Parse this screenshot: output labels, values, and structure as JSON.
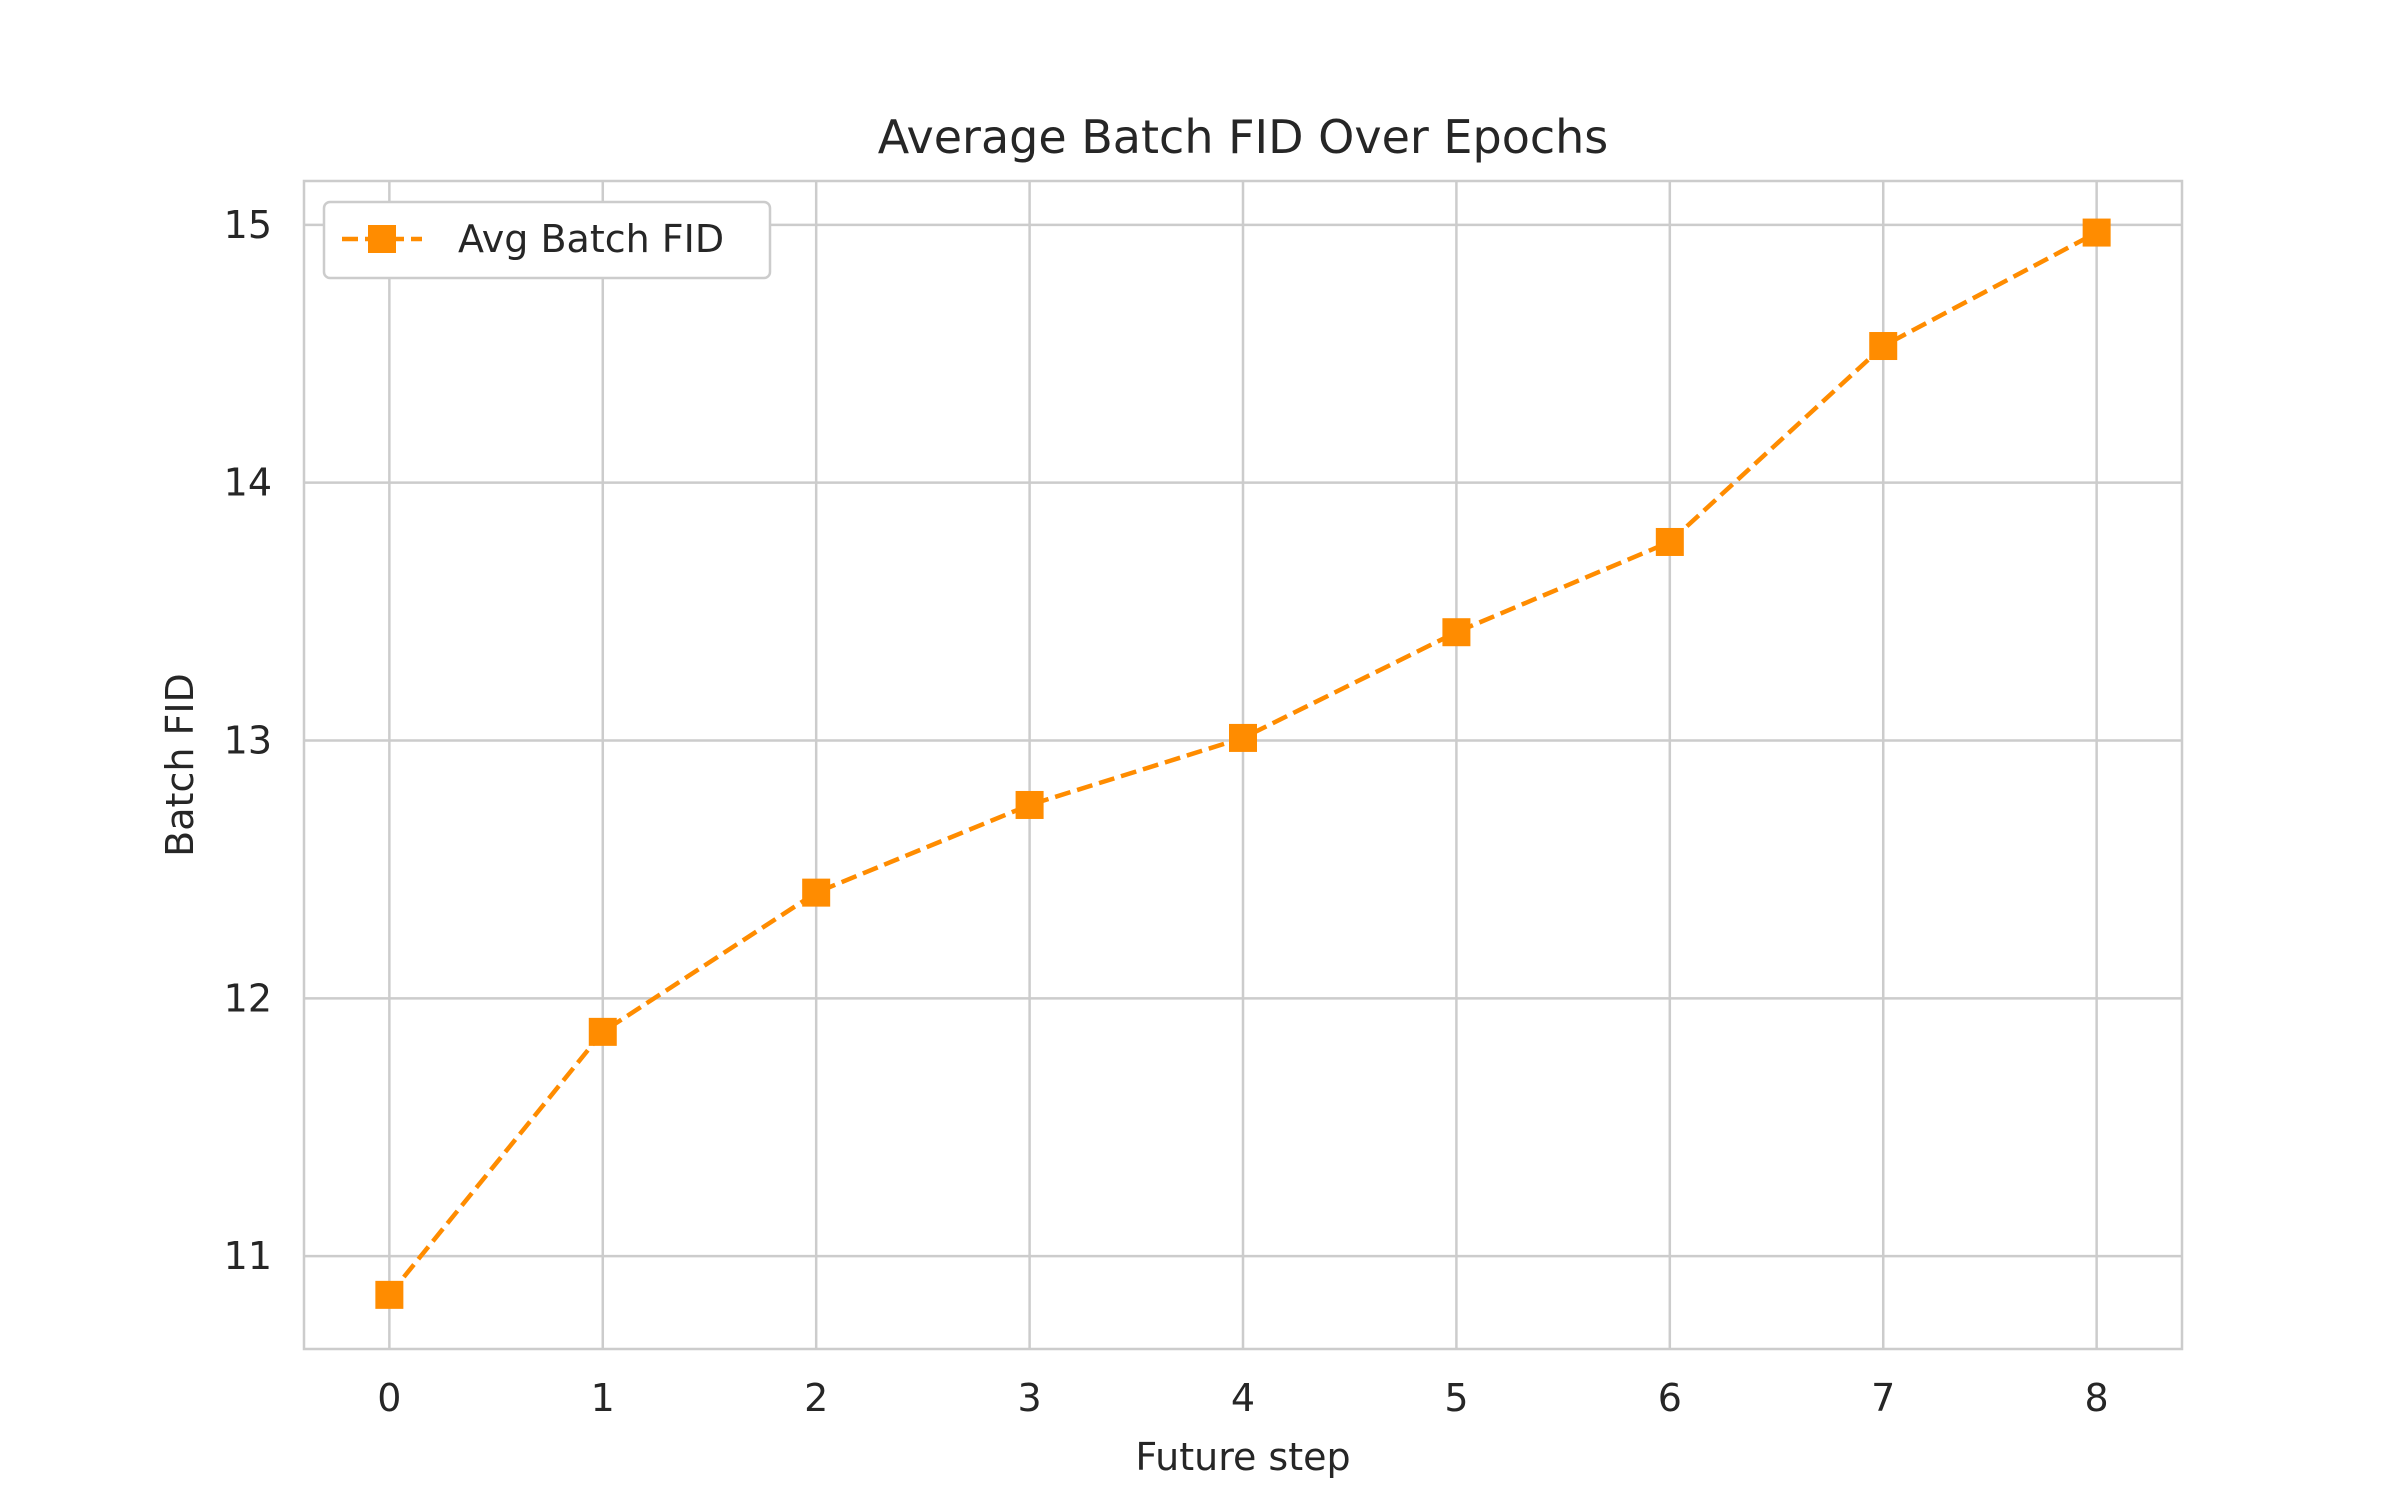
{
  "chart_data": {
    "type": "line",
    "title": "Average Batch FID Over Epochs",
    "xlabel": "Future step",
    "ylabel": "Batch FID",
    "x": [
      0,
      1,
      2,
      3,
      4,
      5,
      6,
      7,
      8
    ],
    "series": [
      {
        "name": "Avg Batch FID",
        "values": [
          10.85,
          11.87,
          12.41,
          12.75,
          13.01,
          13.42,
          13.77,
          14.53,
          14.97
        ],
        "color": "#ff8c00",
        "line_style": "dashed",
        "marker": "square"
      }
    ],
    "xlim": [
      -0.4,
      8.4
    ],
    "ylim": [
      10.64,
      15.17
    ],
    "xticks": [
      "0",
      "1",
      "2",
      "3",
      "4",
      "5",
      "6",
      "7",
      "8"
    ],
    "yticks": [
      "11",
      "12",
      "13",
      "14",
      "15"
    ],
    "grid": true,
    "legend_position": "top-left"
  }
}
